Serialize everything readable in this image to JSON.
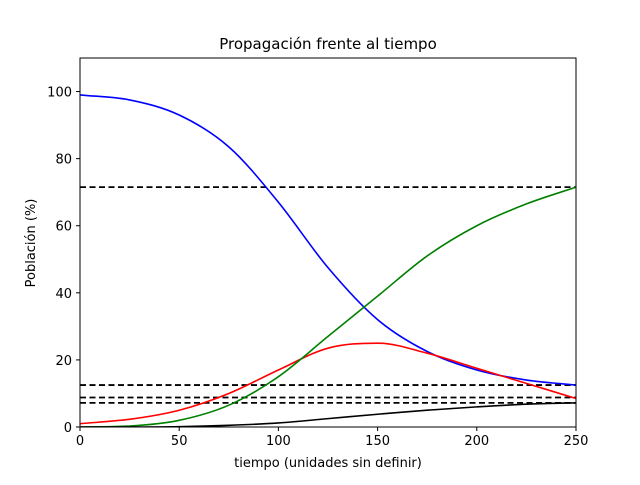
{
  "chart_data": {
    "type": "line",
    "title": "Propagación frente al tiempo",
    "xlabel": "tiempo (unidades sin definir)",
    "ylabel": "Población (%)",
    "xlim": [
      0,
      250
    ],
    "ylim": [
      0,
      110
    ],
    "xticks": [
      0,
      50,
      100,
      150,
      200,
      250
    ],
    "yticks": [
      0,
      20,
      40,
      60,
      80,
      100
    ],
    "grid": false,
    "legend": "none",
    "x": [
      0,
      25,
      50,
      75,
      100,
      125,
      150,
      175,
      200,
      225,
      250
    ],
    "series": [
      {
        "color": "#0000ff",
        "values": [
          99.0,
          97.5,
          93.0,
          83.5,
          67.0,
          47.5,
          32.0,
          22.5,
          17.0,
          14.0,
          12.5
        ]
      },
      {
        "color": "#ff0000",
        "values": [
          1.0,
          2.3,
          5.0,
          10.0,
          17.0,
          23.5,
          25.0,
          22.0,
          17.5,
          13.0,
          8.5
        ]
      },
      {
        "color": "#008000",
        "values": [
          0.0,
          0.3,
          2.0,
          6.5,
          15.0,
          27.0,
          39.0,
          51.0,
          60.0,
          66.5,
          71.5
        ]
      },
      {
        "color": "#000000",
        "values": [
          0.0,
          0.0,
          0.1,
          0.5,
          1.2,
          2.5,
          3.8,
          5.0,
          6.0,
          6.8,
          7.2
        ]
      }
    ],
    "hlines": [
      {
        "y": 71.5,
        "color": "#000000",
        "style": "dashed"
      },
      {
        "y": 12.5,
        "color": "#000000",
        "style": "dashed"
      },
      {
        "y": 8.8,
        "color": "#000000",
        "style": "dashed"
      },
      {
        "y": 7.2,
        "color": "#000000",
        "style": "dashed"
      }
    ]
  }
}
